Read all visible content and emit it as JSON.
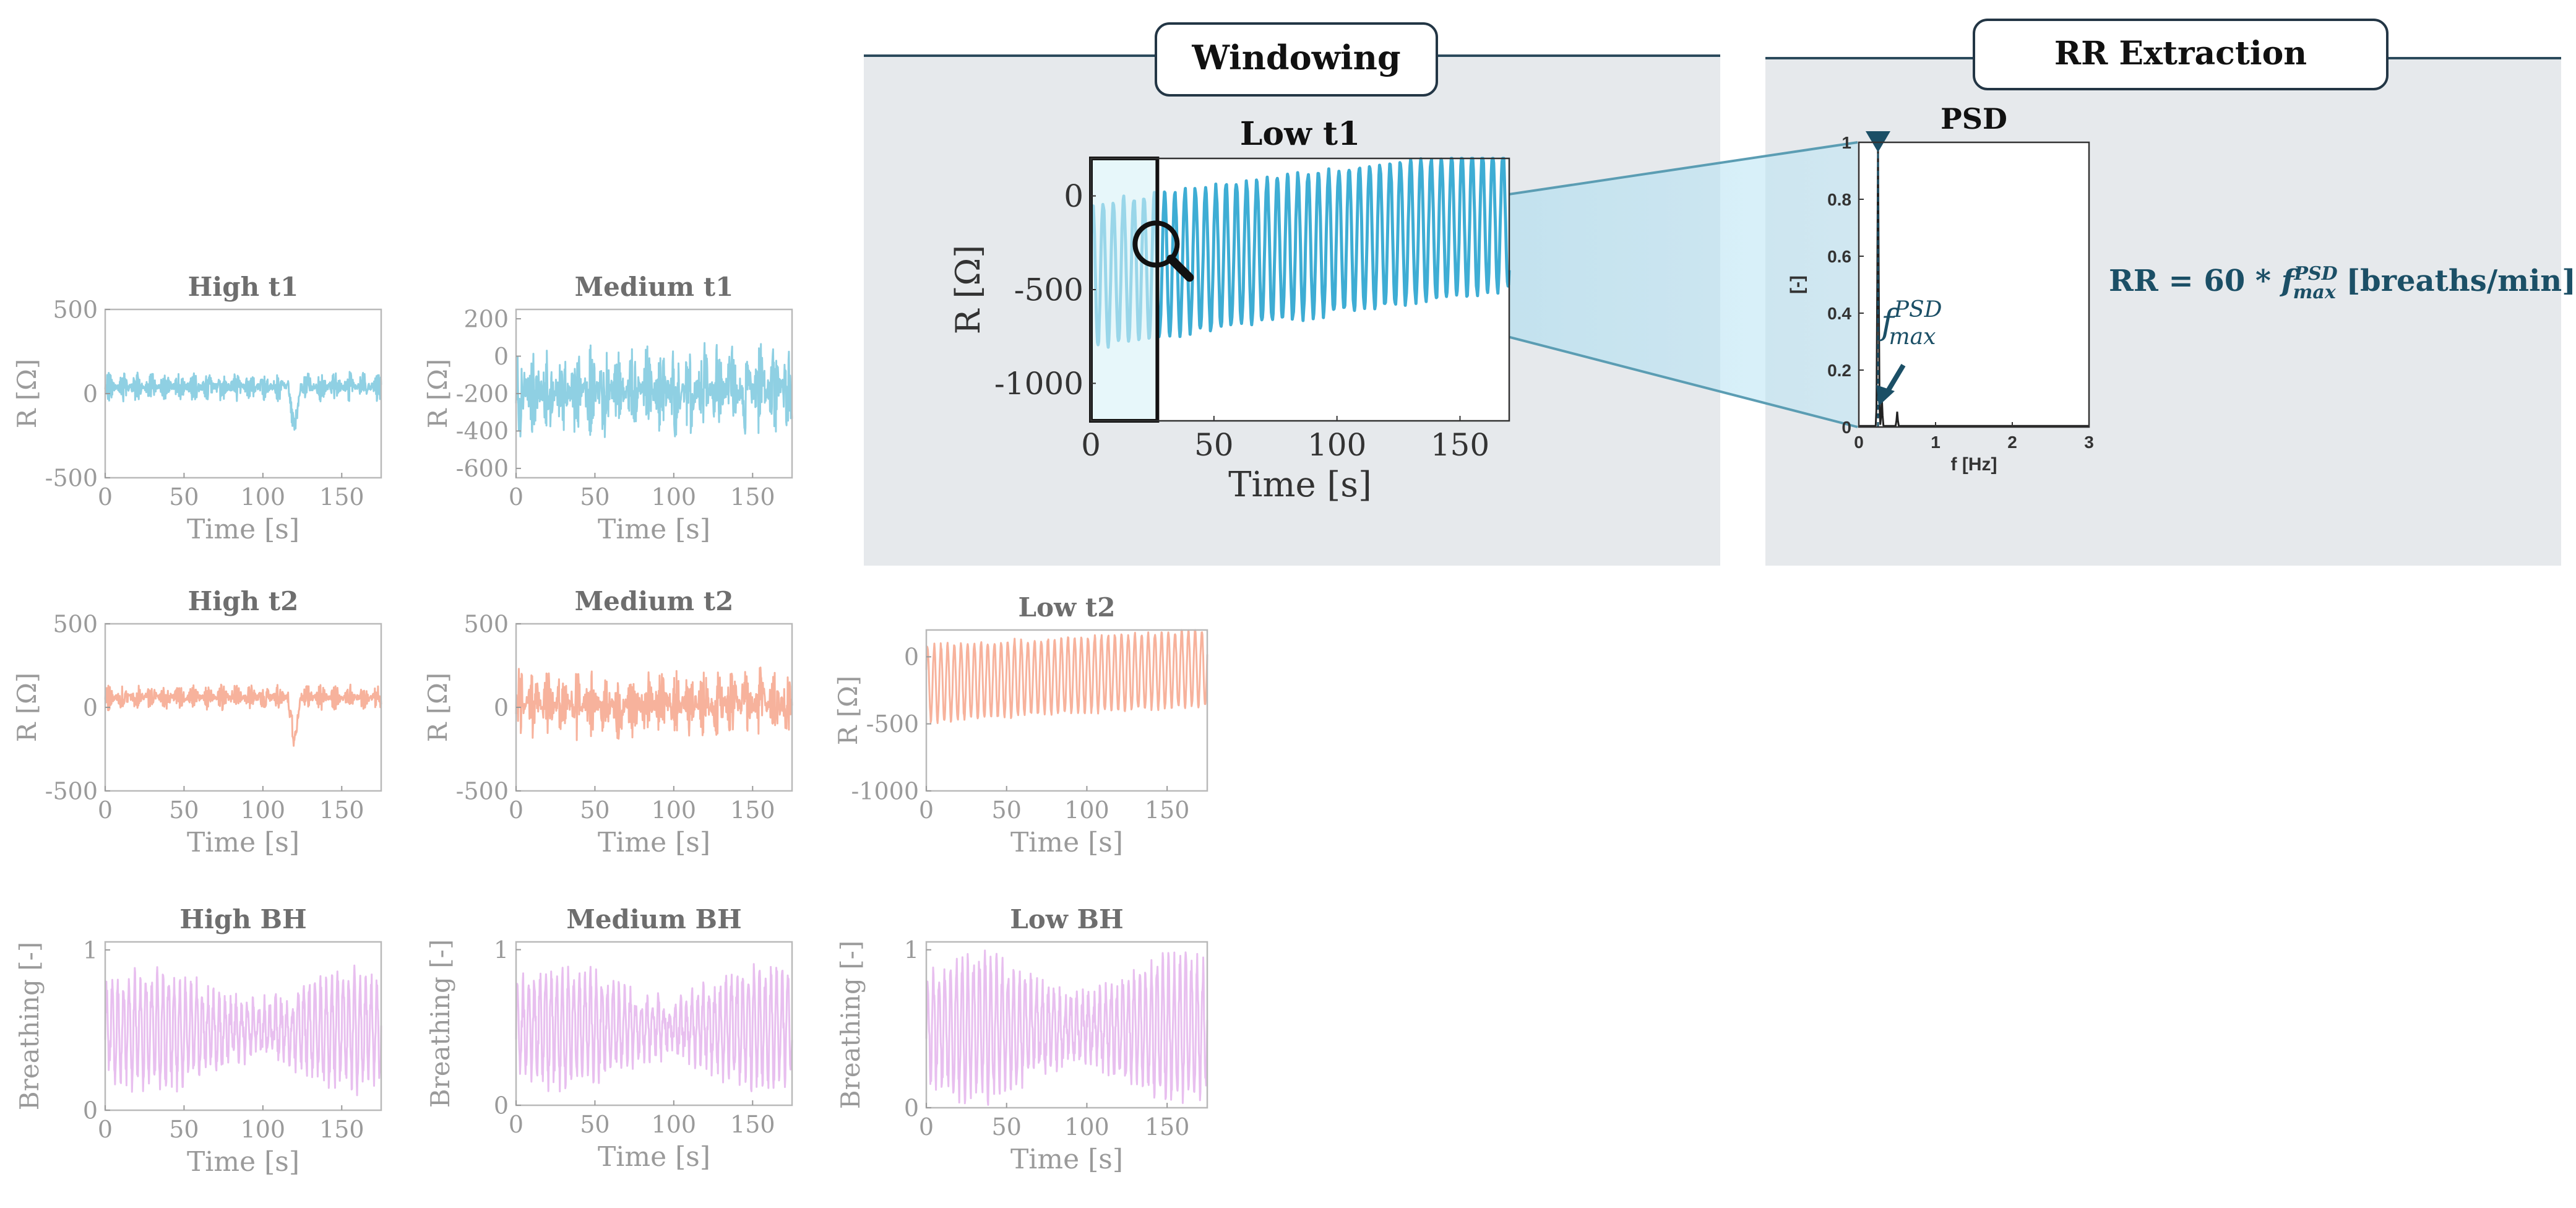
{
  "sections": {
    "windowing": {
      "label": "Windowing"
    },
    "rr_extraction": {
      "label": "RR Extraction"
    }
  },
  "formula": {
    "lhs": "RR = 60 * ",
    "f": "f",
    "sup": "PSD",
    "sub": "max",
    "rhs": " [breaths/min]"
  },
  "annotation": {
    "f": "f",
    "sup": "PSD",
    "sub": "max"
  },
  "colors": {
    "blue": "#8fd0e3",
    "salmon": "#f7b29c",
    "lilac": "#e8bfef",
    "low_blue": "#3eadd4",
    "accent": "#1b4f66",
    "panel": "#e6e9ec"
  },
  "chart_data": [
    {
      "id": "high_t1",
      "type": "line",
      "title": "High  t1",
      "xlabel": "Time [s]",
      "ylabel": "R [Ω]",
      "xlim": [
        0,
        175
      ],
      "ylim": [
        -500,
        500
      ],
      "xticks": [
        "0",
        "50",
        "100",
        "150"
      ],
      "yticks": [
        "500",
        "0",
        "-500"
      ],
      "baseline": 40,
      "noise": 90,
      "color_key": "blue"
    },
    {
      "id": "medium_t1",
      "type": "line",
      "title": "Medium  t1",
      "xlabel": "Time [s]",
      "ylabel": "R [Ω]",
      "xlim": [
        0,
        175
      ],
      "ylim": [
        -650,
        250
      ],
      "xticks": [
        "0",
        "50",
        "100",
        "150"
      ],
      "yticks": [
        "200",
        "0",
        "-200",
        "-400",
        "-600"
      ],
      "baseline": -180,
      "noise": 260,
      "color_key": "blue"
    },
    {
      "id": "high_t2",
      "type": "line",
      "title": "High  t2",
      "xlabel": "Time [s]",
      "ylabel": "R [Ω]",
      "xlim": [
        0,
        175
      ],
      "ylim": [
        -500,
        500
      ],
      "xticks": [
        "0",
        "50",
        "100",
        "150"
      ],
      "yticks": [
        "500",
        "0",
        "-500"
      ],
      "baseline": 60,
      "noise": 80,
      "color_key": "salmon"
    },
    {
      "id": "medium_t2",
      "type": "line",
      "title": "Medium  t2",
      "xlabel": "Time [s]",
      "ylabel": "R [Ω]",
      "xlim": [
        0,
        175
      ],
      "ylim": [
        -500,
        500
      ],
      "xticks": [
        "0",
        "50",
        "100",
        "150"
      ],
      "yticks": [
        "500",
        "0",
        "-500"
      ],
      "baseline": 20,
      "noise": 220,
      "color_key": "salmon"
    },
    {
      "id": "low_t2",
      "type": "line",
      "title": "Low  t2",
      "xlabel": "Time [s]",
      "ylabel": "R [Ω]",
      "xlim": [
        0,
        175
      ],
      "ylim": [
        -1000,
        200
      ],
      "xticks": [
        "0",
        "50",
        "100",
        "150"
      ],
      "yticks": [
        "0",
        "-500",
        "-1000"
      ],
      "baseline": -200,
      "noise": 280,
      "color_key": "salmon"
    },
    {
      "id": "high_bh",
      "type": "line",
      "title": "High  BH",
      "xlabel": "Time [s]",
      "ylabel": "Breathing [-]",
      "xlim": [
        0,
        175
      ],
      "ylim": [
        0,
        1.05
      ],
      "xticks": [
        "0",
        "50",
        "100",
        "150"
      ],
      "yticks": [
        "1",
        "0"
      ],
      "baseline": 0.5,
      "noise": 0.32,
      "color_key": "lilac"
    },
    {
      "id": "medium_bh",
      "type": "line",
      "title": "Medium  BH",
      "xlabel": "Time [s]",
      "ylabel": "Breathing [-]",
      "xlim": [
        0,
        175
      ],
      "ylim": [
        0,
        1.05
      ],
      "xticks": [
        "0",
        "50",
        "100",
        "150"
      ],
      "yticks": [
        "1",
        "0"
      ],
      "baseline": 0.5,
      "noise": 0.34,
      "color_key": "lilac"
    },
    {
      "id": "low_bh",
      "type": "line",
      "title": "Low  BH",
      "xlabel": "Time [s]",
      "ylabel": "Breathing [-]",
      "xlim": [
        0,
        175
      ],
      "ylim": [
        0,
        1.05
      ],
      "xticks": [
        "0",
        "50",
        "100",
        "150"
      ],
      "yticks": [
        "1",
        "0"
      ],
      "baseline": 0.5,
      "noise": 0.42,
      "color_key": "lilac"
    },
    {
      "id": "low_t1",
      "type": "line",
      "title": "Low  t1",
      "xlabel": "Time [s]",
      "ylabel": "R [Ω]",
      "xlim": [
        0,
        170
      ],
      "ylim": [
        -1200,
        200
      ],
      "xticks": [
        "0",
        "50",
        "100",
        "150"
      ],
      "yticks": [
        "0",
        "-500",
        "-1000"
      ],
      "baseline": -420,
      "noise": 380,
      "window": [
        0,
        27
      ],
      "color_key": "low_blue"
    },
    {
      "id": "psd",
      "type": "line",
      "title": "PSD",
      "xlabel": "f [Hz]",
      "ylabel": "[-]",
      "xlim": [
        0,
        3
      ],
      "ylim": [
        0,
        1
      ],
      "xticks": [
        "0",
        "1",
        "2",
        "3"
      ],
      "yticks": [
        "1",
        "0.8",
        "0.6",
        "0.4",
        "0.2",
        "0"
      ],
      "peak_hz": 0.25,
      "peak_value": 1,
      "secondary_peaks": [
        {
          "hz": 0.5,
          "value": 0.05
        },
        {
          "hz": 0.3,
          "value": 0.1
        }
      ],
      "color_key": "accent"
    }
  ]
}
